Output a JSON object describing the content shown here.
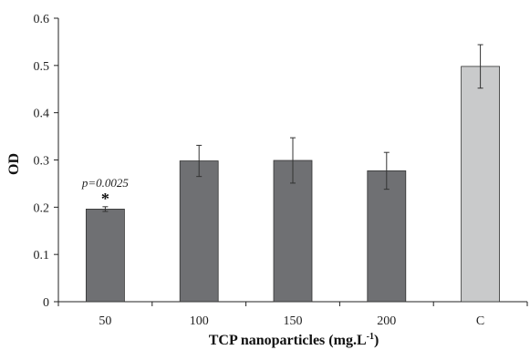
{
  "chart_data": {
    "type": "bar",
    "categories": [
      "50",
      "100",
      "150",
      "200",
      "C"
    ],
    "values": [
      0.196,
      0.298,
      0.299,
      0.277,
      0.498
    ],
    "errors": [
      0.005,
      0.033,
      0.048,
      0.039,
      0.046
    ],
    "bar_colors": [
      "#6f7073",
      "#6f7073",
      "#6f7073",
      "#6f7073",
      "#c9cacb"
    ],
    "ylabel": "OD",
    "xlabel_main": "TCP nanoparticles (mg.L",
    "xlabel_sup": "-1",
    "xlabel_end": ")",
    "ylim": [
      0,
      0.6
    ],
    "yticks": [
      "0",
      "0.1",
      "0.2",
      "0.3",
      "0.4",
      "0.5",
      "0.6"
    ],
    "grid": false,
    "annotation": {
      "category": "50",
      "text": "p=0.0025",
      "marker": "*"
    }
  }
}
